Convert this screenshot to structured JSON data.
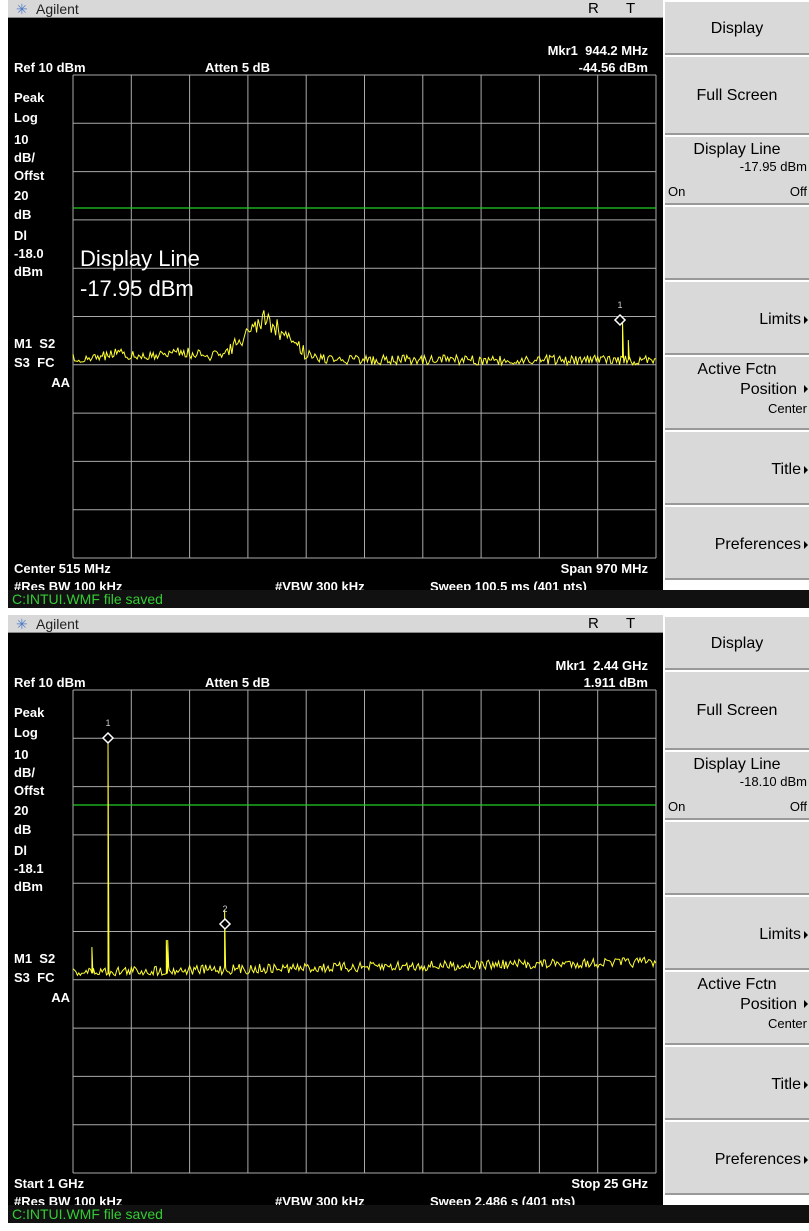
{
  "screens": [
    {
      "brand": "Agilent",
      "indicators": [
        "R",
        "T"
      ],
      "readout": {
        "marker": "Mkr1  944.2 MHz",
        "ref": "Ref 10 dBm",
        "atten": "Atten 5 dB",
        "level": "-44.56 dBm"
      },
      "side_labels": [
        "Peak",
        "Log",
        "10",
        "dB/",
        "Offst",
        "20",
        "dB",
        "Dl",
        "-18.0",
        "dBm",
        "M1  S2",
        "S3  FC",
        "AA"
      ],
      "overlay": [
        "Display Line",
        "-17.95 dBm"
      ],
      "markers": [
        "1"
      ],
      "footer": {
        "left": "Center 515 MHz",
        "right": "Span 970 MHz",
        "rbw": "#Res BW 100 kHz",
        "vbw": "#VBW 300 kHz",
        "sweep": "Sweep 100.5 ms (401 pts)"
      },
      "status": "C:INTUI.WMF file saved",
      "softkeys": [
        {
          "label": "Display"
        },
        {
          "label": "Full Screen"
        },
        {
          "label": "Display Line",
          "value": "-17.95 dBm",
          "options": [
            "On",
            "Off"
          ]
        },
        {
          "label": "Limits",
          "submenu": true
        },
        {
          "label": "Active Fctn",
          "sub": "Position",
          "value": "Center",
          "submenu": true
        },
        {
          "label": "Title",
          "submenu": true
        },
        {
          "label": "Preferences",
          "submenu": true
        }
      ]
    },
    {
      "brand": "Agilent",
      "indicators": [
        "R",
        "T"
      ],
      "readout": {
        "marker": "Mkr1  2.44 GHz",
        "ref": "Ref 10 dBm",
        "atten": "Atten 5 dB",
        "level": "1.911 dBm"
      },
      "side_labels": [
        "Peak",
        "Log",
        "10",
        "dB/",
        "Offst",
        "20",
        "dB",
        "Dl",
        "-18.1",
        "dBm",
        "M1  S2",
        "S3  FC",
        "AA"
      ],
      "markers": [
        "1",
        "2"
      ],
      "footer": {
        "left": "Start 1 GHz",
        "right": "Stop 25 GHz",
        "rbw": "#Res BW 100 kHz",
        "vbw": "#VBW 300 kHz",
        "sweep": "Sweep 2.486 s (401 pts)"
      },
      "status": "C:INTUI.WMF file saved",
      "softkeys": [
        {
          "label": "Display"
        },
        {
          "label": "Full Screen"
        },
        {
          "label": "Display Line",
          "value": "-18.10 dBm",
          "options": [
            "On",
            "Off"
          ]
        },
        {
          "label": "Limits",
          "submenu": true
        },
        {
          "label": "Active Fctn",
          "sub": "Position",
          "value": "Center",
          "submenu": true
        },
        {
          "label": "Title",
          "submenu": true
        },
        {
          "label": "Preferences",
          "submenu": true
        }
      ]
    }
  ]
}
